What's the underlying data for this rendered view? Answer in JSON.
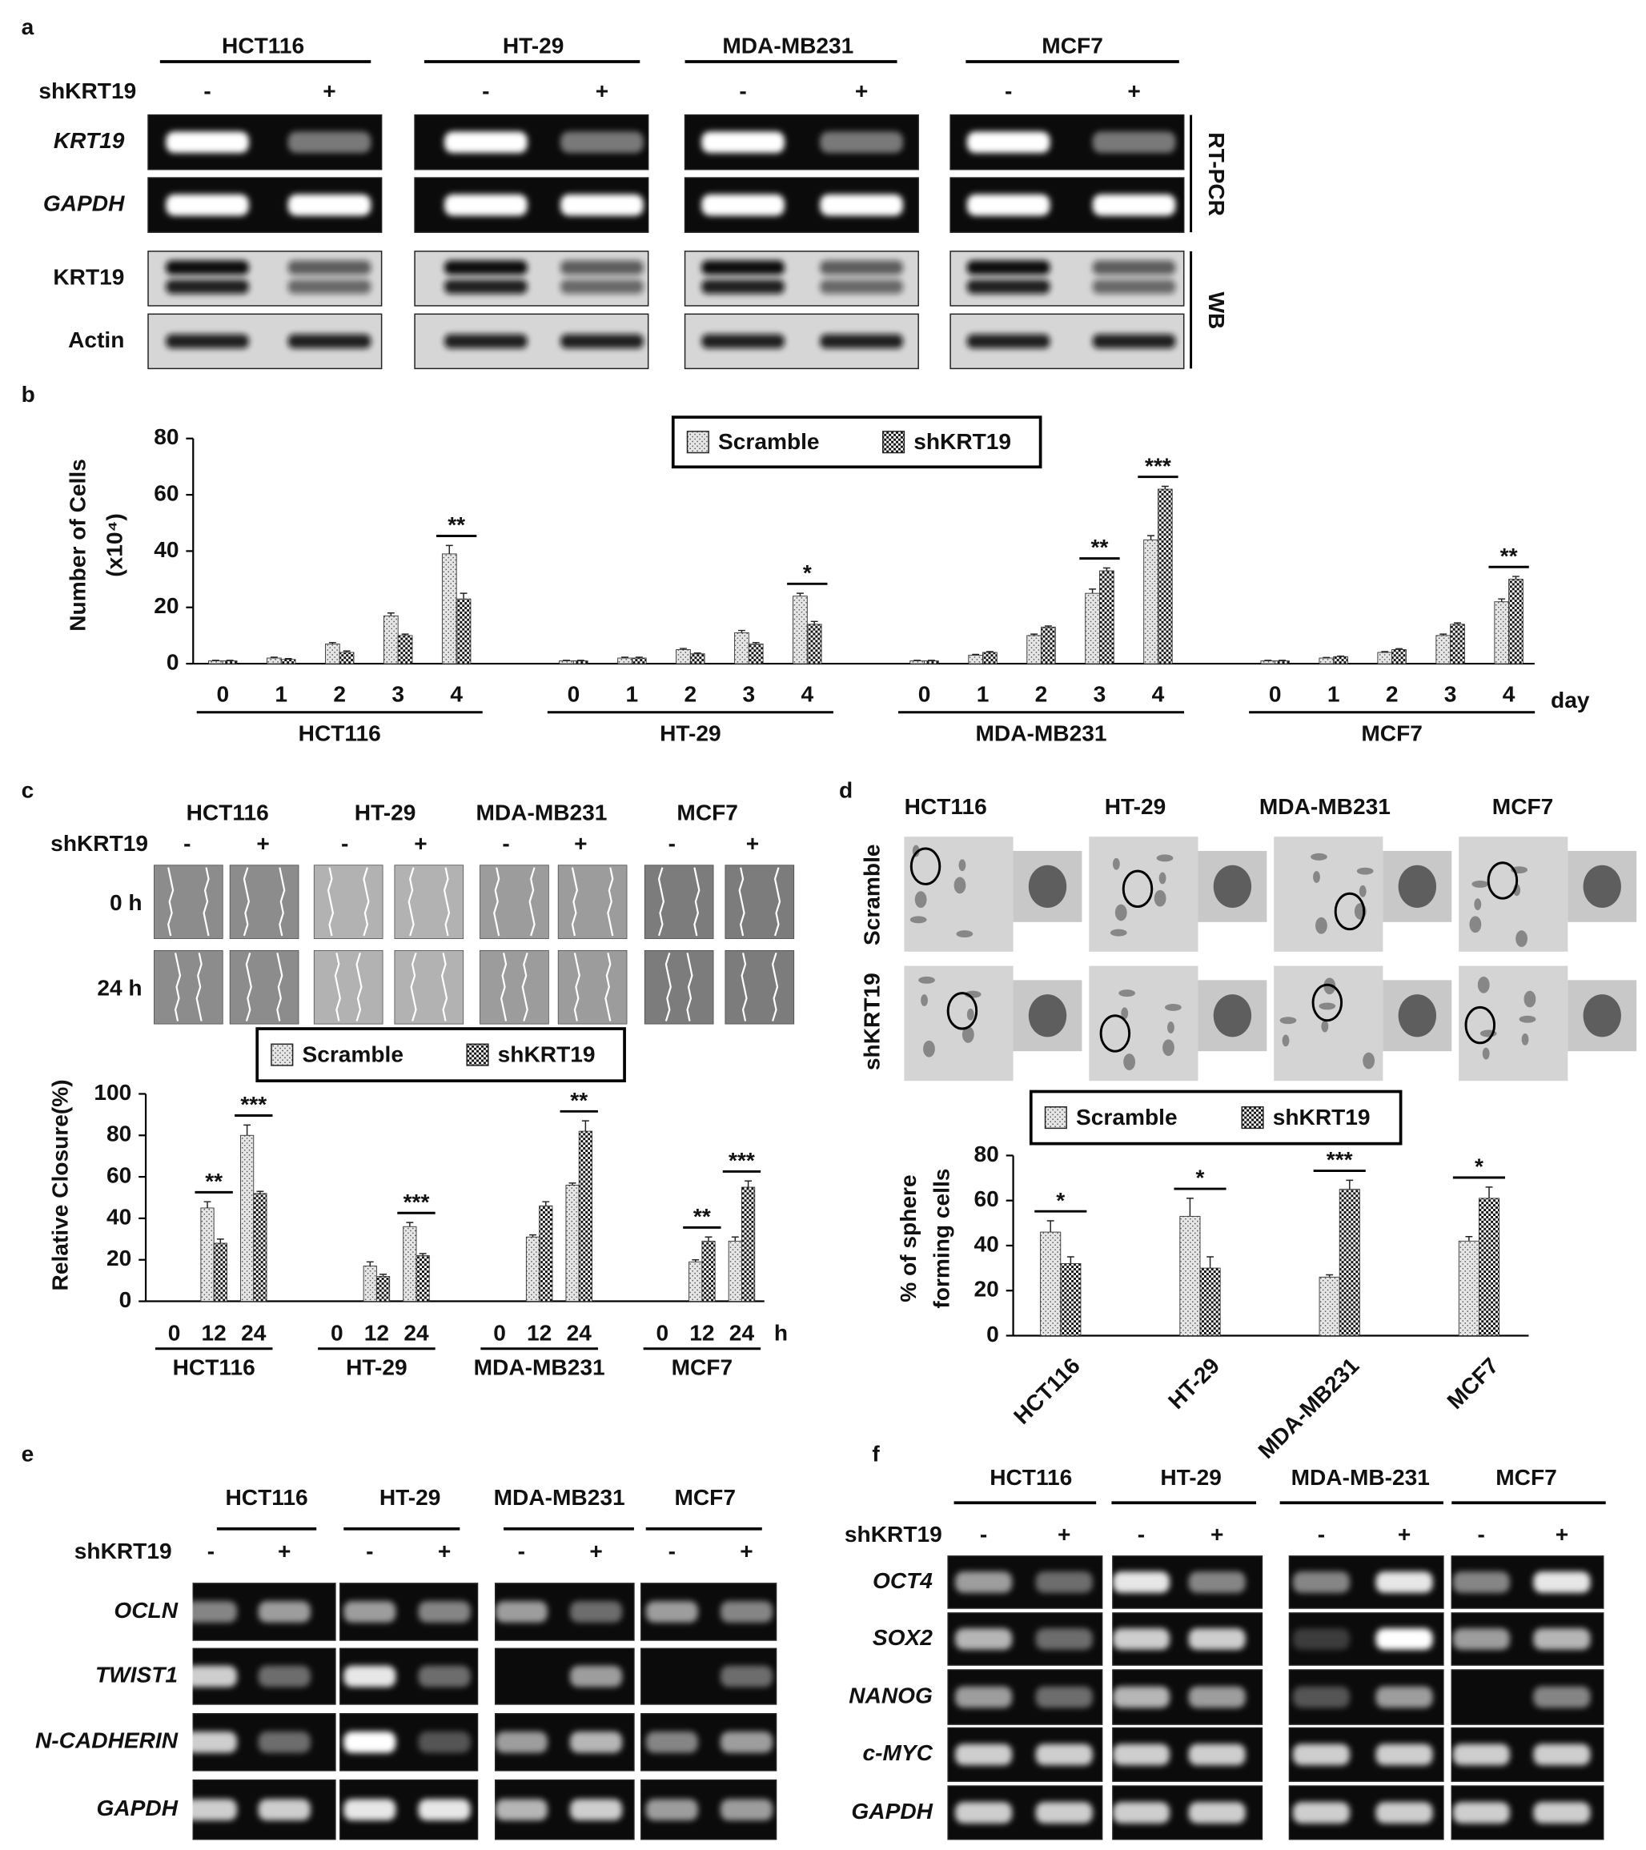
{
  "panel_labels": [
    "a",
    "b",
    "c",
    "d",
    "e",
    "f"
  ],
  "panel_a": {
    "cell_lines": [
      "HCT116",
      "HT-29",
      "MDA-MB231",
      "MCF7"
    ],
    "treatment_label": "shKRT19",
    "treatment_signs": [
      "-",
      "+"
    ],
    "rows": [
      "KRT19",
      "GAPDH",
      "KRT19",
      "Actin"
    ],
    "side_labels": [
      "RT-PCR",
      "WB"
    ]
  },
  "panel_c_images": {
    "cell_lines": [
      "HCT116",
      "HT-29",
      "MDA-MB231",
      "MCF7"
    ],
    "treatment_label": "shKRT19",
    "treatment_signs": [
      "-",
      "+"
    ],
    "rows": [
      "0 h",
      "24 h"
    ]
  },
  "panel_d_images": {
    "cell_lines": [
      "HCT116",
      "HT-29",
      "MDA-MB231",
      "MCF7"
    ],
    "rows": [
      "Scramble",
      "shKRT19"
    ]
  },
  "panel_e": {
    "cell_lines": [
      "HCT116",
      "HT-29",
      "MDA-MB231",
      "MCF7"
    ],
    "treatment_label": "shKRT19",
    "treatment_signs": [
      "-",
      "+"
    ],
    "rows": [
      "OCLN",
      "TWIST1",
      "N-CADHERIN",
      "GAPDH"
    ]
  },
  "panel_f": {
    "cell_lines": [
      "HCT116",
      "HT-29",
      "MDA-MB-231",
      "MCF7"
    ],
    "treatment_label": "shKRT19",
    "treatment_signs": [
      "-",
      "+"
    ],
    "rows": [
      "OCT4",
      "SOX2",
      "NANOG",
      "c-MYC",
      "GAPDH"
    ]
  },
  "chart_data": [
    {
      "type": "bar",
      "ylabel": [
        "Number of Cells",
        "(x10⁴)"
      ],
      "xlabel": "day",
      "groups": [
        "HCT116",
        "HT-29",
        "MDA-MB231",
        "MCF7"
      ],
      "categories": [
        "0",
        "1",
        "2",
        "3",
        "4",
        "0",
        "1",
        "2",
        "3",
        "4",
        "0",
        "1",
        "2",
        "3",
        "4",
        "0",
        "1",
        "2",
        "3",
        "4"
      ],
      "series": [
        {
          "name": "Scramble",
          "color": "#555555",
          "pattern": "dots",
          "values": [
            1,
            2,
            7,
            17,
            39,
            1,
            2,
            5,
            11,
            24,
            1,
            3,
            10,
            25,
            44,
            1,
            2,
            4,
            10,
            22
          ],
          "errors": [
            0.2,
            0.3,
            0.5,
            1,
            3,
            0.2,
            0.3,
            0.4,
            0.8,
            1,
            0.2,
            0.3,
            0.5,
            1.5,
            1.5,
            0.2,
            0.2,
            0.3,
            0.5,
            1
          ]
        },
        {
          "name": "shKRT19",
          "color": "#111111",
          "pattern": "checker",
          "values": [
            1,
            1.5,
            4,
            10,
            23,
            1,
            2,
            3.5,
            7,
            14,
            1,
            4,
            13,
            33,
            62,
            1,
            2.5,
            5,
            14,
            30
          ],
          "errors": [
            0.2,
            0.3,
            0.5,
            0.5,
            2,
            0.2,
            0.3,
            0.3,
            0.5,
            1,
            0.2,
            0.3,
            0.4,
            1,
            1,
            0.2,
            0.2,
            0.3,
            0.5,
            1
          ]
        }
      ],
      "significance": [
        null,
        null,
        null,
        null,
        "**",
        null,
        null,
        null,
        null,
        "*",
        null,
        null,
        null,
        "**",
        "***",
        null,
        null,
        null,
        null,
        "**"
      ],
      "ylim": [
        0,
        80
      ],
      "yticks": [
        0,
        20,
        40,
        60,
        80
      ]
    },
    {
      "type": "bar",
      "ylabel": [
        "Relative Closure(%)"
      ],
      "xlabel": "h",
      "groups": [
        "HCT116",
        "HT-29",
        "MDA-MB231",
        "MCF7"
      ],
      "categories": [
        "0",
        "12",
        "24",
        "0",
        "12",
        "24",
        "0",
        "12",
        "24",
        "0",
        "12",
        "24"
      ],
      "series": [
        {
          "name": "Scramble",
          "color": "#555555",
          "pattern": "dots",
          "values": [
            0,
            45,
            80,
            0,
            17,
            36,
            0,
            31,
            56,
            0,
            19,
            29
          ],
          "errors": [
            0,
            3,
            5,
            0,
            2,
            2,
            0,
            1,
            1,
            0,
            1,
            2
          ]
        },
        {
          "name": "shKRT19",
          "color": "#111111",
          "pattern": "checker",
          "values": [
            0,
            28,
            52,
            0,
            12,
            22,
            0,
            46,
            82,
            0,
            29,
            55
          ],
          "errors": [
            0,
            2,
            1,
            0,
            1,
            1,
            0,
            2,
            5,
            0,
            2,
            3
          ]
        }
      ],
      "significance": [
        null,
        "**",
        "***",
        null,
        null,
        "***",
        null,
        null,
        "**",
        null,
        "**",
        "***"
      ],
      "ylim": [
        0,
        100
      ],
      "yticks": [
        0,
        20,
        40,
        60,
        80,
        100
      ]
    },
    {
      "type": "bar",
      "ylabel": [
        "% of sphere",
        "forming cells"
      ],
      "categories": [
        "HCT116",
        "HT-29",
        "MDA-MB231",
        "MCF7"
      ],
      "series": [
        {
          "name": "Scramble",
          "color": "#555555",
          "pattern": "dots",
          "values": [
            46,
            53,
            26,
            42
          ],
          "errors": [
            5,
            8,
            1,
            2
          ]
        },
        {
          "name": "shKRT19",
          "color": "#111111",
          "pattern": "checker",
          "values": [
            32,
            30,
            65,
            61
          ],
          "errors": [
            3,
            5,
            4,
            5
          ]
        }
      ],
      "significance": [
        "*",
        "*",
        "***",
        "*"
      ],
      "ylim": [
        0,
        80
      ],
      "yticks": [
        0,
        20,
        40,
        60,
        80
      ]
    }
  ]
}
